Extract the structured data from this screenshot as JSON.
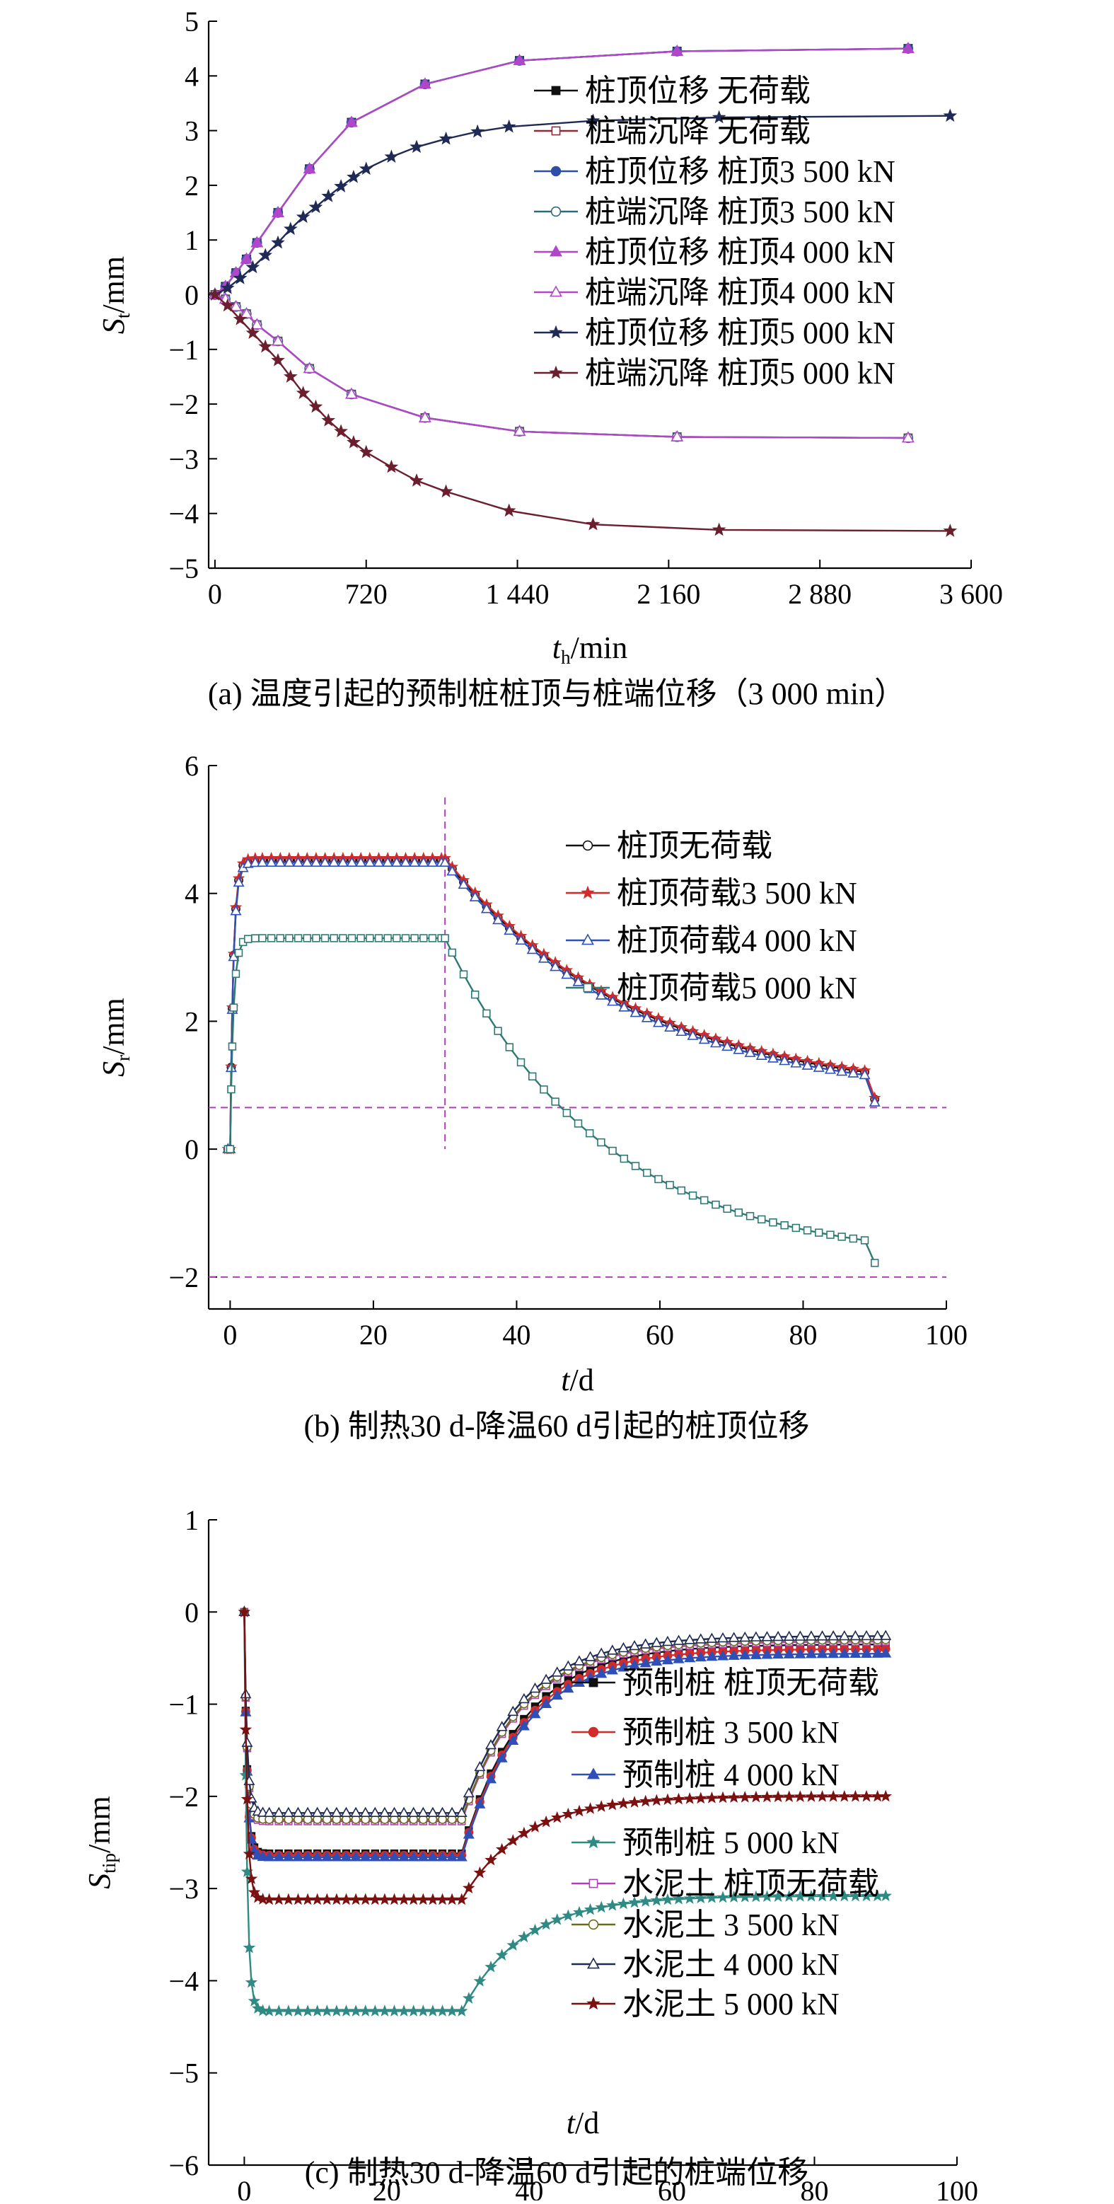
{
  "chart_data": [
    {
      "type": "line",
      "caption": "(a) 温度引起的预制桩桩顶与桩端位移（3 000 min）",
      "xlabel_main": "t",
      "xlabel_sub": "h",
      "xlabel_unit": "/min",
      "ylabel_main": "S",
      "ylabel_sub": "t",
      "ylabel_unit": "/mm",
      "xlim": [
        -30,
        3600
      ],
      "ylim": [
        -5,
        5
      ],
      "xticks": [
        0,
        720,
        1440,
        2160,
        2880,
        3600
      ],
      "xtick_labels": [
        "0",
        "720",
        "1 440",
        "2 160",
        "2 880",
        "3 600"
      ],
      "yticks": [
        -5,
        -4,
        -3,
        -2,
        -1,
        0,
        1,
        2,
        3,
        4,
        5
      ],
      "ytick_labels": [
        "−5",
        "−4",
        "−3",
        "−2",
        "−1",
        "0",
        "1",
        "2",
        "3",
        "4",
        "5"
      ],
      "legend_position": "right",
      "series": [
        {
          "name": "桩顶位移 无荷载",
          "color": "#111111",
          "marker": "square-filled",
          "x": [
            0,
            50,
            100,
            150,
            200,
            300,
            450,
            650,
            1000,
            1450,
            2200,
            3300
          ],
          "y": [
            0,
            0.15,
            0.4,
            0.65,
            0.95,
            1.5,
            2.3,
            3.15,
            3.85,
            4.28,
            4.45,
            4.5
          ]
        },
        {
          "name": "桩端沉降 无荷载",
          "color": "#8b2a3a",
          "marker": "square-open",
          "x": [
            0,
            50,
            100,
            150,
            200,
            300,
            450,
            650,
            1000,
            1450,
            2200,
            3300
          ],
          "y": [
            0,
            -0.08,
            -0.22,
            -0.35,
            -0.55,
            -0.85,
            -1.35,
            -1.82,
            -2.25,
            -2.5,
            -2.6,
            -2.62
          ]
        },
        {
          "name": "桩顶位移 桩顶3 500 kN",
          "color": "#2e4fa8",
          "marker": "circle-filled",
          "x": [
            0,
            50,
            100,
            150,
            200,
            300,
            450,
            650,
            1000,
            1450,
            2200,
            3300
          ],
          "y": [
            0,
            0.15,
            0.4,
            0.65,
            0.95,
            1.5,
            2.3,
            3.15,
            3.85,
            4.28,
            4.45,
            4.5
          ]
        },
        {
          "name": "桩端沉降 桩顶3 500 kN",
          "color": "#2e6b7a",
          "marker": "circle-open",
          "x": [
            0,
            50,
            100,
            150,
            200,
            300,
            450,
            650,
            1000,
            1450,
            2200,
            3300
          ],
          "y": [
            0,
            -0.08,
            -0.22,
            -0.35,
            -0.55,
            -0.85,
            -1.35,
            -1.82,
            -2.25,
            -2.5,
            -2.6,
            -2.62
          ]
        },
        {
          "name": "桩顶位移 桩顶4 000 kN",
          "color": "#b047c8",
          "marker": "triangle-filled",
          "x": [
            0,
            50,
            100,
            150,
            200,
            300,
            450,
            650,
            1000,
            1450,
            2200,
            3300
          ],
          "y": [
            0,
            0.15,
            0.4,
            0.65,
            0.95,
            1.5,
            2.3,
            3.15,
            3.85,
            4.28,
            4.45,
            4.5
          ]
        },
        {
          "name": "桩端沉降 桩顶4 000 kN",
          "color": "#b047c8",
          "marker": "triangle-open",
          "x": [
            0,
            50,
            100,
            150,
            200,
            300,
            450,
            650,
            1000,
            1450,
            2200,
            3300
          ],
          "y": [
            0,
            -0.08,
            -0.22,
            -0.35,
            -0.55,
            -0.85,
            -1.35,
            -1.82,
            -2.25,
            -2.5,
            -2.6,
            -2.62
          ]
        },
        {
          "name": "桩顶位移 桩顶5 000 kN",
          "color": "#1f2a55",
          "marker": "star",
          "x": [
            0,
            60,
            120,
            180,
            240,
            300,
            360,
            420,
            480,
            540,
            600,
            660,
            720,
            840,
            960,
            1100,
            1250,
            1400,
            1800,
            2400,
            3500
          ],
          "y": [
            0,
            0.12,
            0.3,
            0.5,
            0.72,
            0.95,
            1.2,
            1.42,
            1.6,
            1.8,
            1.98,
            2.15,
            2.3,
            2.52,
            2.7,
            2.85,
            2.98,
            3.07,
            3.18,
            3.24,
            3.27
          ]
        },
        {
          "name": "桩端沉降 桩顶5 000 kN",
          "color": "#6b1e2e",
          "marker": "star",
          "x": [
            0,
            60,
            120,
            180,
            240,
            300,
            360,
            420,
            480,
            540,
            600,
            660,
            720,
            840,
            960,
            1100,
            1400,
            1800,
            2400,
            3500
          ],
          "y": [
            0,
            -0.2,
            -0.45,
            -0.7,
            -0.95,
            -1.2,
            -1.5,
            -1.8,
            -2.05,
            -2.3,
            -2.5,
            -2.7,
            -2.88,
            -3.15,
            -3.4,
            -3.6,
            -3.95,
            -4.2,
            -4.3,
            -4.32
          ]
        }
      ]
    },
    {
      "type": "line",
      "caption": "(b) 制热30 d-降温60 d引起的桩顶位移",
      "xlabel_main": "t",
      "xlabel_sub": "",
      "xlabel_unit": "/d",
      "ylabel_main": "S",
      "ylabel_sub": "r",
      "ylabel_unit": "/mm",
      "xlim": [
        -3,
        100
      ],
      "ylim": [
        -2.5,
        6
      ],
      "xticks": [
        0,
        20,
        40,
        60,
        80,
        100
      ],
      "xtick_labels": [
        "0",
        "20",
        "40",
        "60",
        "80",
        "100"
      ],
      "yticks": [
        -2,
        0,
        2,
        4,
        6
      ],
      "ytick_labels": [
        "−2",
        "0",
        "2",
        "4",
        "6"
      ],
      "legend_position": "top-right",
      "reference_lines": {
        "horizontal": [
          0.65,
          -2.0
        ],
        "vertical": [
          30
        ],
        "color": "#b040b8"
      },
      "series": [
        {
          "name": "桩顶无荷载",
          "color": "#111111",
          "marker": "circle-open",
          "peak": 4.52,
          "tail_end": 0.78,
          "tail_tau": 27
        },
        {
          "name": "桩顶荷载3 500 kN",
          "color": "#d22b2b",
          "marker": "star",
          "peak": 4.55,
          "tail_end": 0.8,
          "tail_tau": 27
        },
        {
          "name": "桩顶荷载4 000 kN",
          "color": "#2e4fb8",
          "marker": "triangle-open",
          "peak": 4.48,
          "tail_end": 0.73,
          "tail_tau": 27
        },
        {
          "name": "桩顶荷载5 000 kN",
          "color": "#2e7a73",
          "marker": "square-open",
          "peak": 3.3,
          "tail_end": -1.78,
          "tail_tau": 22
        }
      ]
    },
    {
      "type": "line",
      "caption": "(c) 制热30 d-降温60 d引起的桩端位移",
      "xlabel_main": "t",
      "xlabel_sub": "",
      "xlabel_unit": "/d",
      "ylabel_main": "S",
      "ylabel_sub": "tip",
      "ylabel_unit": "/mm",
      "xlim": [
        -5,
        100
      ],
      "ylim": [
        -6,
        1
      ],
      "xticks": [
        0,
        20,
        40,
        60,
        80,
        100
      ],
      "xtick_labels": [
        "0",
        "20",
        "40",
        "60",
        "80",
        "100"
      ],
      "yticks": [
        -6,
        -5,
        -4,
        -3,
        -2,
        -1,
        0,
        1
      ],
      "ytick_labels": [
        "−6",
        "−5",
        "−4",
        "−3",
        "−2",
        "−1",
        "0",
        "1"
      ],
      "legend_position": "right",
      "series": [
        {
          "name": "预制桩 桩顶无荷载",
          "color": "#111111",
          "marker": "square-filled",
          "trough": -2.62,
          "end": -0.35
        },
        {
          "name": "预制桩 3 500 kN",
          "color": "#d22b2b",
          "marker": "circle-filled",
          "trough": -2.64,
          "end": -0.4
        },
        {
          "name": "预制桩 4 000 kN",
          "color": "#2e4fb8",
          "marker": "triangle-filled",
          "trough": -2.66,
          "end": -0.45
        },
        {
          "name": "预制桩 5 000 kN",
          "color": "#2e8a82",
          "marker": "star",
          "trough": -4.33,
          "end": -3.08
        },
        {
          "name": "水泥土 桩顶无荷载",
          "color": "#b040b8",
          "marker": "square-open",
          "trough": -2.27,
          "end": -0.32
        },
        {
          "name": "水泥土 3 500 kN",
          "color": "#6b6b1e",
          "marker": "circle-open",
          "trough": -2.25,
          "end": -0.3
        },
        {
          "name": "水泥土 4 000 kN",
          "color": "#1f2a55",
          "marker": "triangle-open",
          "trough": -2.18,
          "end": -0.26
        },
        {
          "name": "水泥土 5 000 kN",
          "color": "#7a1010",
          "marker": "star",
          "trough": -3.12,
          "end": -2.0
        }
      ]
    }
  ]
}
